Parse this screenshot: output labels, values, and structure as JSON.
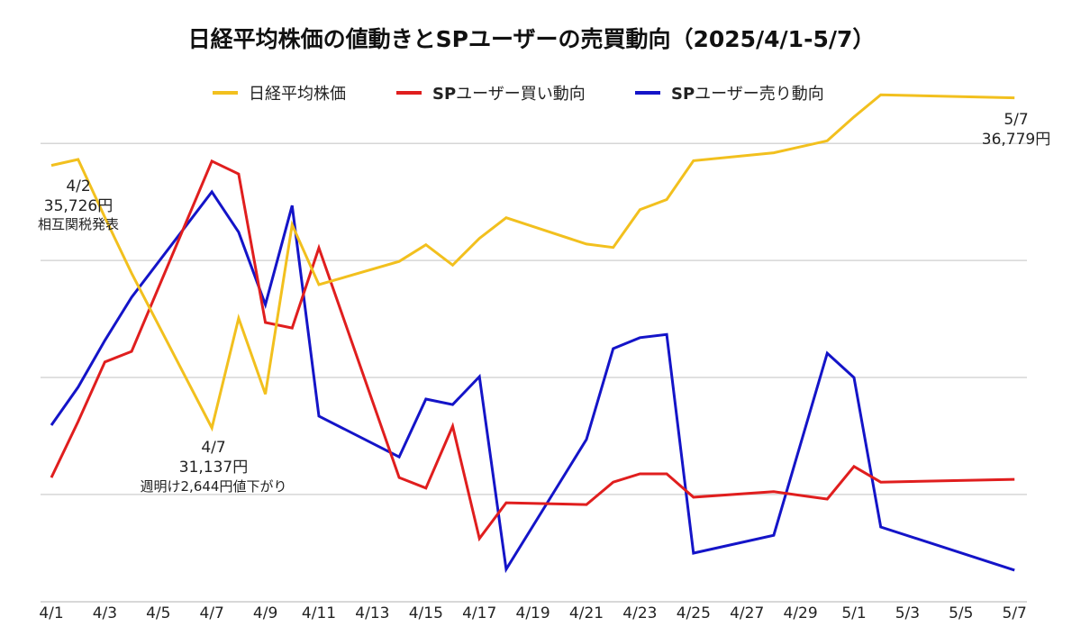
{
  "chart_data": {
    "type": "line",
    "title": "日経平均株価の値動きとSPユーザーの売買動向（2025/4/1-5/7）",
    "xlabel": "",
    "ylabel": "",
    "grid": true,
    "legend_position": "top-center",
    "x_tick_labels": [
      "4/1",
      "4/3",
      "4/5",
      "4/7",
      "4/9",
      "4/11",
      "4/13",
      "4/15",
      "4/17",
      "4/19",
      "4/21",
      "4/23",
      "4/25",
      "4/27",
      "4/29",
      "5/1",
      "5/3",
      "5/5",
      "5/7"
    ],
    "x": [
      "4/1",
      "4/2",
      "4/3",
      "4/4",
      "4/7",
      "4/8",
      "4/9",
      "4/10",
      "4/11",
      "4/14",
      "4/15",
      "4/16",
      "4/17",
      "4/18",
      "4/21",
      "4/22",
      "4/23",
      "4/24",
      "4/25",
      "4/28",
      "4/30",
      "5/1",
      "5/2",
      "5/7"
    ],
    "y_range_yen": [
      28165,
      36003
    ],
    "y_gridlines_yen": [
      30000,
      32000,
      34000,
      36000
    ],
    "secondary_range_index": [
      0,
      100
    ],
    "series": [
      {
        "name": "日経平均株価",
        "unit": "円",
        "color": "#f2c01e",
        "values": [
          35624,
          35726,
          34736,
          33781,
          31137,
          33012,
          31714,
          34609,
          33586,
          33982,
          34267,
          33920,
          34377,
          34730,
          34280,
          34221,
          34868,
          35040,
          35705,
          35840,
          36045,
          36452,
          36831,
          36779
        ]
      },
      {
        "name_prefix": "SP",
        "name_suffix": "ユーザー買い動向",
        "name": "SPユーザー買い動向",
        "unit": "relative index",
        "color": "#e01e1e",
        "values": [
          27.1,
          39.3,
          52.3,
          54.6,
          96.1,
          93.3,
          60.9,
          59.7,
          77.2,
          27.1,
          24.8,
          38.3,
          13.8,
          21.6,
          21.2,
          26.1,
          27.9,
          27.9,
          22.8,
          24.0,
          22.4,
          29.5,
          26.1,
          26.7
        ]
      },
      {
        "name_prefix": "SP",
        "name_suffix": "ユーザー売り動向",
        "name": "SPユーザー売り動向",
        "unit": "relative index",
        "color": "#1414c8",
        "values": [
          38.5,
          46.8,
          57.0,
          66.4,
          89.4,
          80.6,
          64.8,
          86.4,
          40.5,
          31.6,
          44.2,
          43.0,
          49.1,
          7.1,
          35.4,
          55.2,
          57.6,
          58.3,
          10.6,
          14.5,
          54.2,
          48.9,
          16.3,
          6.9
        ]
      }
    ],
    "annotations": [
      {
        "date": "4/2",
        "value": "35,726円",
        "note": "相互関税発表"
      },
      {
        "date": "4/7",
        "value": "31,137円",
        "note": "週明け2,644円値下がり"
      },
      {
        "date": "5/7",
        "value": "36,779円",
        "note": ""
      }
    ]
  }
}
